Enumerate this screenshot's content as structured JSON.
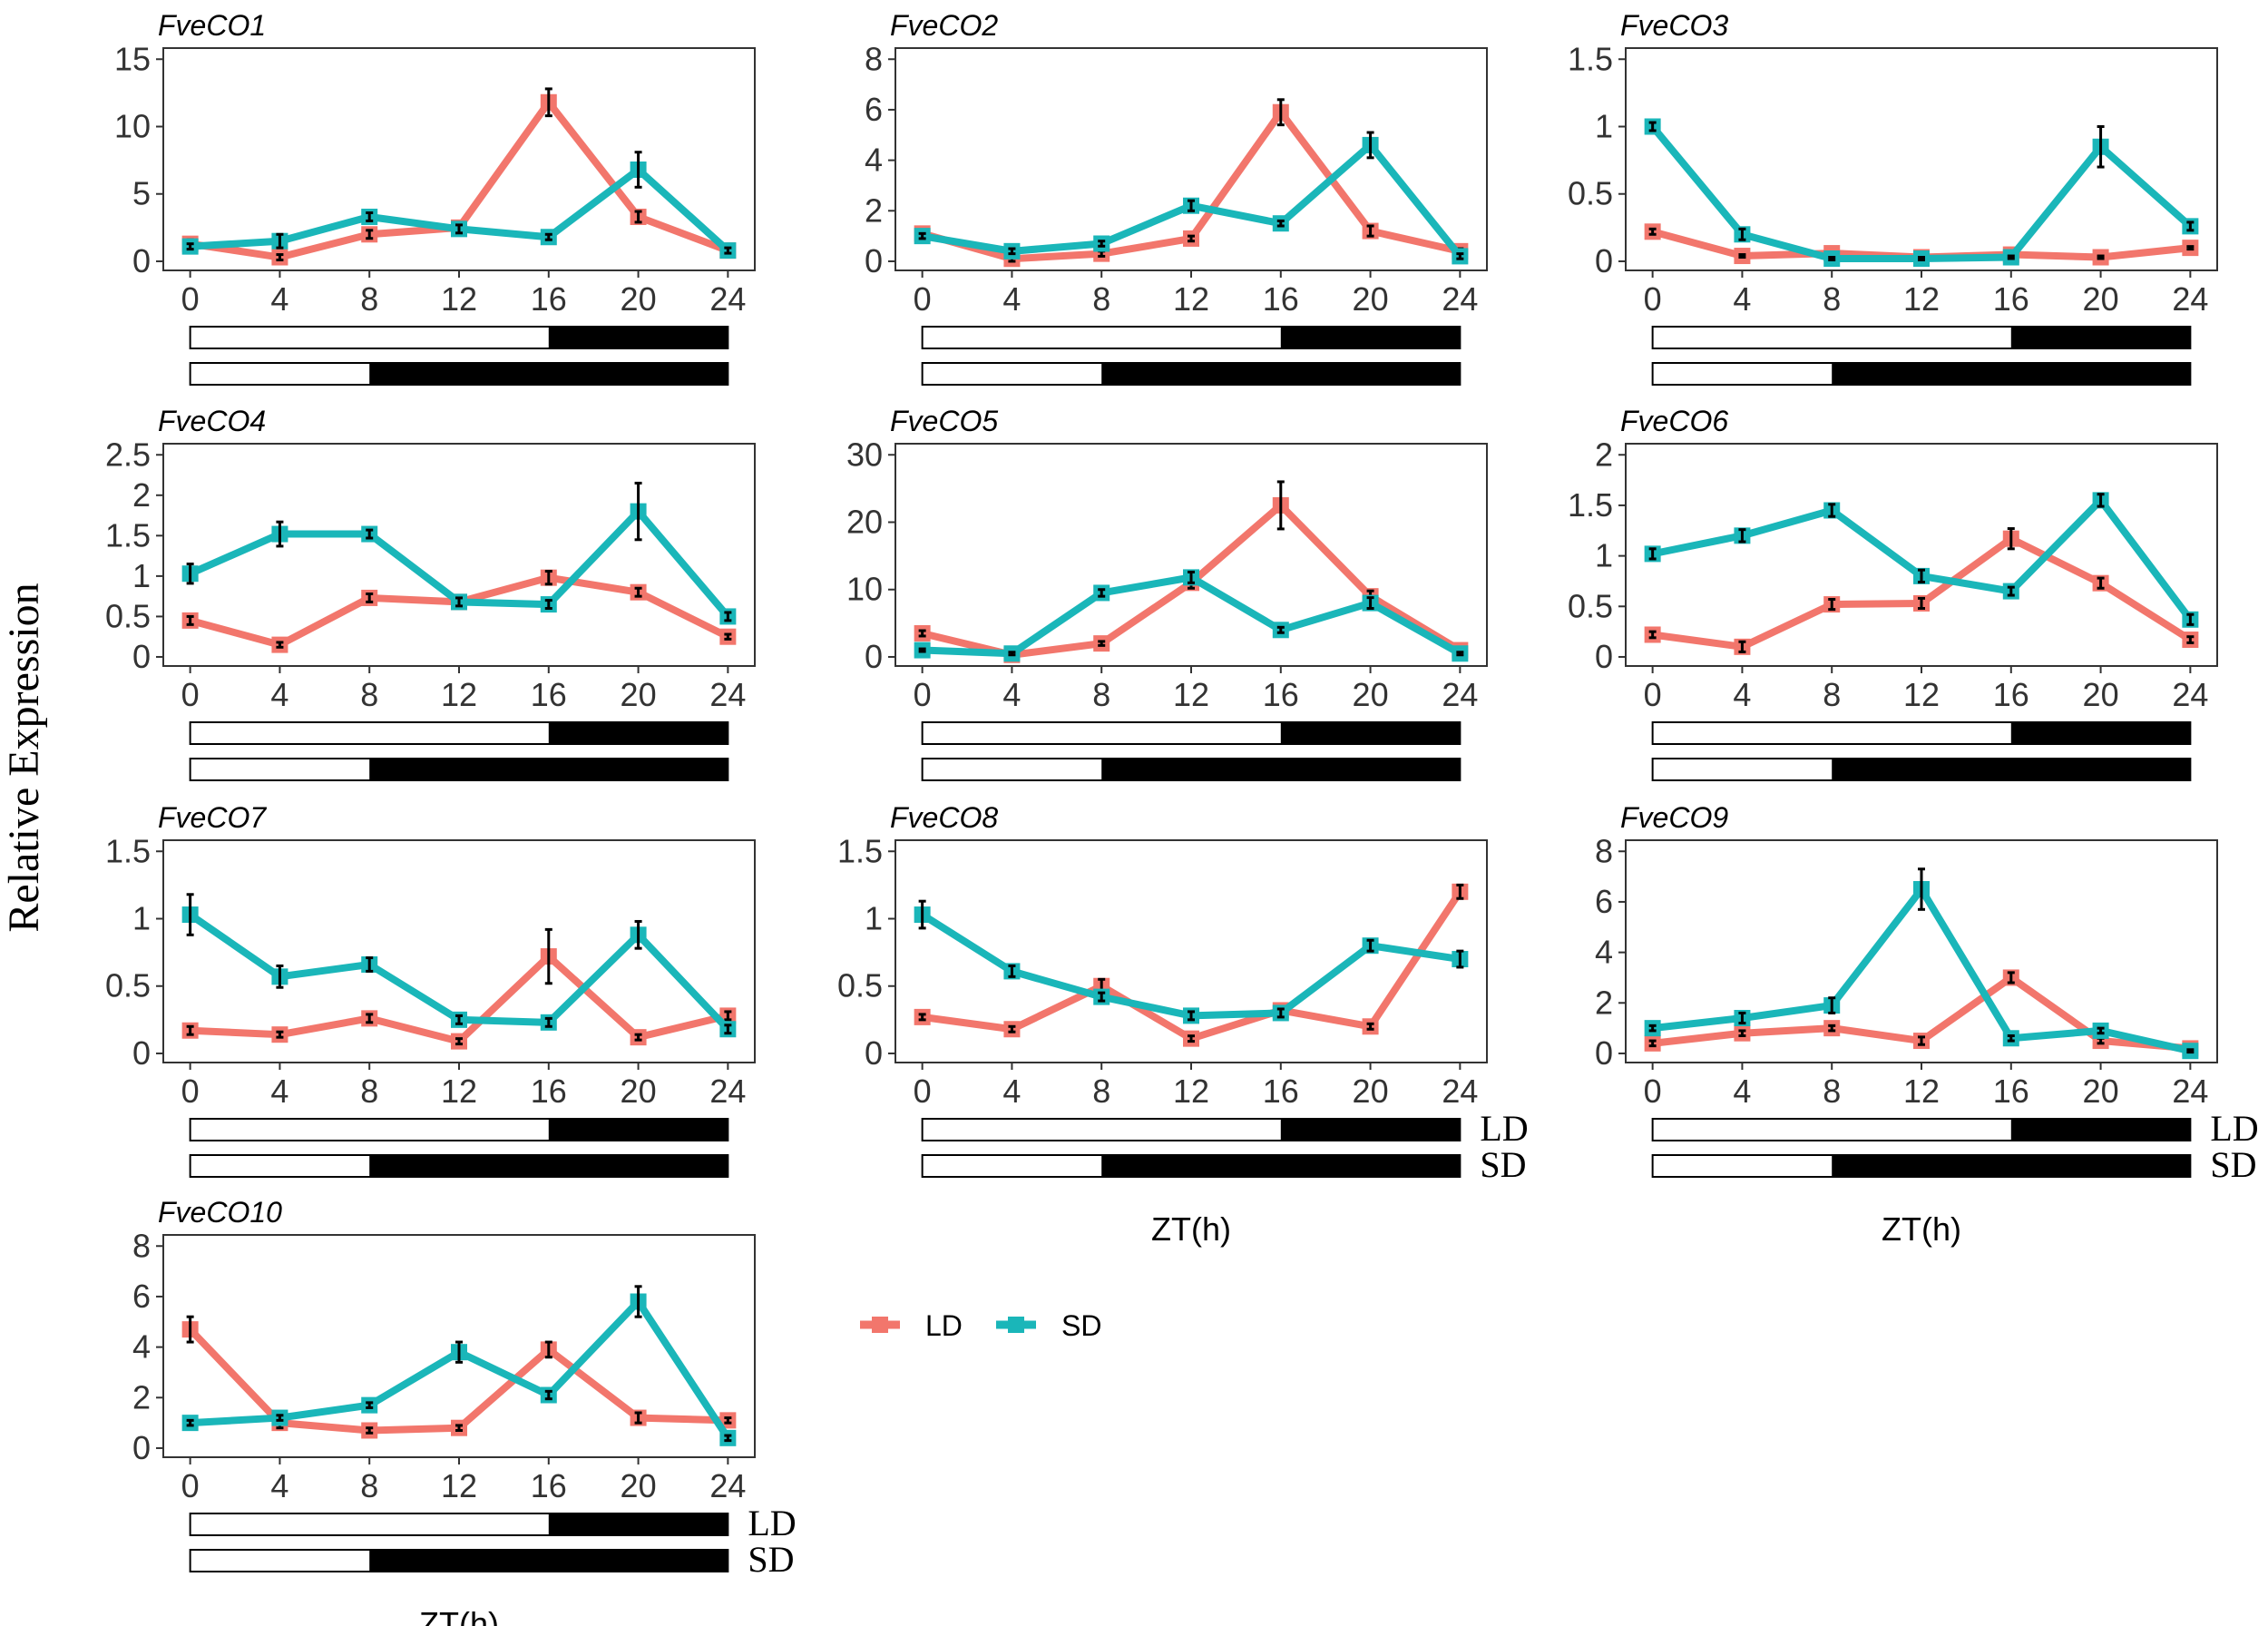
{
  "chart_data": {
    "type": "line",
    "ylabel": "Relative Expression",
    "xlabel": "ZT(h)",
    "x": [
      0,
      4,
      8,
      12,
      16,
      20,
      24
    ],
    "photoperiod_labels": {
      "ld": "LD",
      "sd": "SD"
    },
    "photoperiods": {
      "ld_light_hours": 16,
      "sd_light_hours": 8
    },
    "legend": {
      "placement": "bottom-center",
      "entries": [
        "LD",
        "SD"
      ]
    },
    "colors": {
      "LD": "#F2766C",
      "SD": "#1AB6B9"
    },
    "panels": [
      {
        "title": "FveCO1",
        "yticks": [
          0,
          5,
          10,
          15
        ],
        "ld": [
          1.3,
          0.3,
          2.0,
          2.5,
          11.8,
          3.3,
          0.8
        ],
        "sd": [
          1.1,
          1.5,
          3.3,
          2.4,
          1.8,
          6.8,
          0.8
        ],
        "ld_err": [
          0.3,
          0.2,
          0.3,
          0.3,
          1.0,
          0.4,
          0.2
        ],
        "sd_err": [
          0.2,
          0.5,
          0.3,
          0.3,
          0.2,
          1.3,
          0.2
        ],
        "show_photoperiod_labels": false,
        "show_xlabel": false
      },
      {
        "title": "FveCO2",
        "yticks": [
          0,
          2,
          4,
          6,
          8
        ],
        "ld": [
          1.1,
          0.1,
          0.3,
          0.9,
          5.9,
          1.2,
          0.4
        ],
        "sd": [
          1.0,
          0.4,
          0.7,
          2.2,
          1.5,
          4.6,
          0.2
        ],
        "ld_err": [
          0.15,
          0.1,
          0.1,
          0.1,
          0.5,
          0.2,
          0.1
        ],
        "sd_err": [
          0.1,
          0.1,
          0.1,
          0.2,
          0.1,
          0.5,
          0.1
        ],
        "show_photoperiod_labels": false,
        "show_xlabel": false
      },
      {
        "title": "FveCO3",
        "yticks": [
          0,
          0.5,
          1.0,
          1.5
        ],
        "ld": [
          0.22,
          0.04,
          0.06,
          0.03,
          0.05,
          0.03,
          0.1
        ],
        "sd": [
          1.0,
          0.2,
          0.02,
          0.02,
          0.03,
          0.85,
          0.26
        ],
        "ld_err": [
          0.02,
          0.01,
          0.01,
          0.01,
          0.01,
          0.01,
          0.01
        ],
        "sd_err": [
          0.03,
          0.04,
          0.01,
          0.01,
          0.01,
          0.15,
          0.03
        ],
        "show_photoperiod_labels": false,
        "show_xlabel": false
      },
      {
        "title": "FveCO4",
        "yticks": [
          0,
          0.5,
          1.0,
          1.5,
          2.0,
          2.5
        ],
        "ld": [
          0.45,
          0.15,
          0.73,
          0.68,
          0.98,
          0.8,
          0.25
        ],
        "sd": [
          1.03,
          1.52,
          1.52,
          0.68,
          0.65,
          1.8,
          0.5
        ],
        "ld_err": [
          0.05,
          0.03,
          0.05,
          0.05,
          0.08,
          0.05,
          0.03
        ],
        "sd_err": [
          0.12,
          0.15,
          0.05,
          0.05,
          0.05,
          0.35,
          0.05
        ],
        "show_photoperiod_labels": false,
        "show_xlabel": false
      },
      {
        "title": "FveCO5",
        "yticks": [
          0,
          10,
          20,
          30
        ],
        "ld": [
          3.5,
          0.3,
          2.0,
          11.0,
          22.5,
          9.0,
          1.0
        ],
        "sd": [
          1.0,
          0.5,
          9.5,
          11.8,
          4.0,
          8.0,
          0.5
        ],
        "ld_err": [
          0.4,
          0.2,
          0.3,
          0.8,
          3.5,
          0.8,
          0.2
        ],
        "sd_err": [
          0.2,
          0.2,
          0.5,
          0.8,
          0.4,
          0.8,
          0.2
        ],
        "show_photoperiod_labels": false,
        "show_xlabel": false
      },
      {
        "title": "FveCO6",
        "yticks": [
          0,
          0.5,
          1.0,
          1.5,
          2.0
        ],
        "ld": [
          0.22,
          0.1,
          0.52,
          0.53,
          1.17,
          0.73,
          0.17
        ],
        "sd": [
          1.02,
          1.2,
          1.45,
          0.8,
          0.65,
          1.55,
          0.37
        ],
        "ld_err": [
          0.03,
          0.05,
          0.05,
          0.05,
          0.1,
          0.05,
          0.03
        ],
        "sd_err": [
          0.05,
          0.06,
          0.06,
          0.06,
          0.04,
          0.06,
          0.05
        ],
        "show_photoperiod_labels": false,
        "show_xlabel": false
      },
      {
        "title": "FveCO7",
        "yticks": [
          0,
          0.5,
          1.0,
          1.5
        ],
        "ld": [
          0.17,
          0.14,
          0.26,
          0.09,
          0.72,
          0.12,
          0.28
        ],
        "sd": [
          1.03,
          0.57,
          0.66,
          0.25,
          0.23,
          0.88,
          0.18
        ],
        "ld_err": [
          0.03,
          0.02,
          0.03,
          0.02,
          0.2,
          0.02,
          0.03
        ],
        "sd_err": [
          0.15,
          0.08,
          0.05,
          0.03,
          0.03,
          0.1,
          0.03
        ],
        "show_photoperiod_labels": false,
        "show_xlabel": false
      },
      {
        "title": "FveCO8",
        "yticks": [
          0,
          0.5,
          1.0,
          1.5
        ],
        "ld": [
          0.27,
          0.18,
          0.5,
          0.11,
          0.32,
          0.2,
          1.2
        ],
        "sd": [
          1.03,
          0.61,
          0.42,
          0.28,
          0.3,
          0.8,
          0.7
        ],
        "ld_err": [
          0.02,
          0.02,
          0.05,
          0.02,
          0.03,
          0.02,
          0.05
        ],
        "sd_err": [
          0.1,
          0.04,
          0.03,
          0.03,
          0.03,
          0.04,
          0.06
        ],
        "show_photoperiod_labels": true,
        "show_xlabel": true
      },
      {
        "title": "FveCO9",
        "yticks": [
          0,
          2,
          4,
          6,
          8
        ],
        "ld": [
          0.4,
          0.8,
          1.0,
          0.5,
          3.0,
          0.5,
          0.2
        ],
        "sd": [
          1.0,
          1.4,
          1.9,
          6.5,
          0.6,
          0.9,
          0.1
        ],
        "ld_err": [
          0.1,
          0.1,
          0.1,
          0.15,
          0.2,
          0.1,
          0.05
        ],
        "sd_err": [
          0.1,
          0.2,
          0.3,
          0.8,
          0.1,
          0.1,
          0.05
        ],
        "show_photoperiod_labels": true,
        "show_xlabel": true
      },
      {
        "title": "FveCO10",
        "yticks": [
          0,
          2,
          4,
          6,
          8
        ],
        "ld": [
          4.7,
          1.0,
          0.7,
          0.8,
          3.9,
          1.2,
          1.1
        ],
        "sd": [
          1.0,
          1.2,
          1.7,
          3.8,
          2.1,
          5.8,
          0.4
        ],
        "ld_err": [
          0.5,
          0.2,
          0.1,
          0.1,
          0.3,
          0.2,
          0.1
        ],
        "sd_err": [
          0.1,
          0.1,
          0.1,
          0.4,
          0.15,
          0.6,
          0.1
        ],
        "show_photoperiod_labels": true,
        "show_xlabel": true
      }
    ]
  }
}
